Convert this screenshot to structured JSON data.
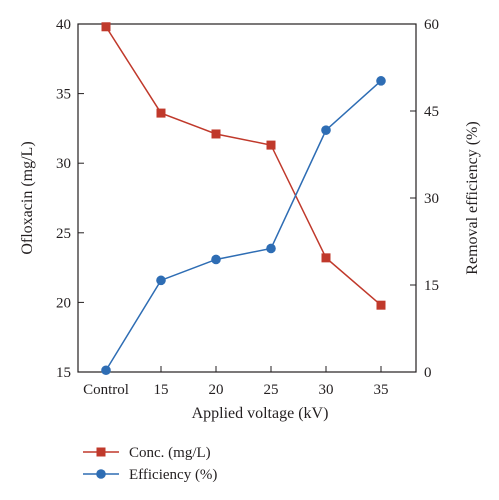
{
  "chart_data": {
    "type": "line",
    "categories": [
      "Control",
      "15",
      "20",
      "25",
      "30",
      "35"
    ],
    "xlabel": "Applied voltage (kV)",
    "ylabel": "Ofloxacin (mg/L)",
    "y2label": "Removal efficiency (%)",
    "ylim": [
      15,
      40
    ],
    "yticks": [
      15,
      20,
      25,
      30,
      35,
      40
    ],
    "y2lim": [
      0,
      60
    ],
    "y2ticks": [
      0,
      15,
      30,
      45,
      60
    ],
    "grid": false,
    "legend_position": "bottom-left",
    "series": [
      {
        "name": "Conc. (mg/L)",
        "axis": "left",
        "marker": "square",
        "color": "#c0392b",
        "values": [
          39.8,
          33.6,
          32.1,
          31.3,
          23.2,
          19.8
        ]
      },
      {
        "name": "Efficiency (%)",
        "axis": "right",
        "marker": "circle",
        "color": "#2e6db4",
        "values": [
          0.3,
          15.8,
          19.4,
          21.3,
          41.7,
          50.2
        ]
      }
    ]
  }
}
